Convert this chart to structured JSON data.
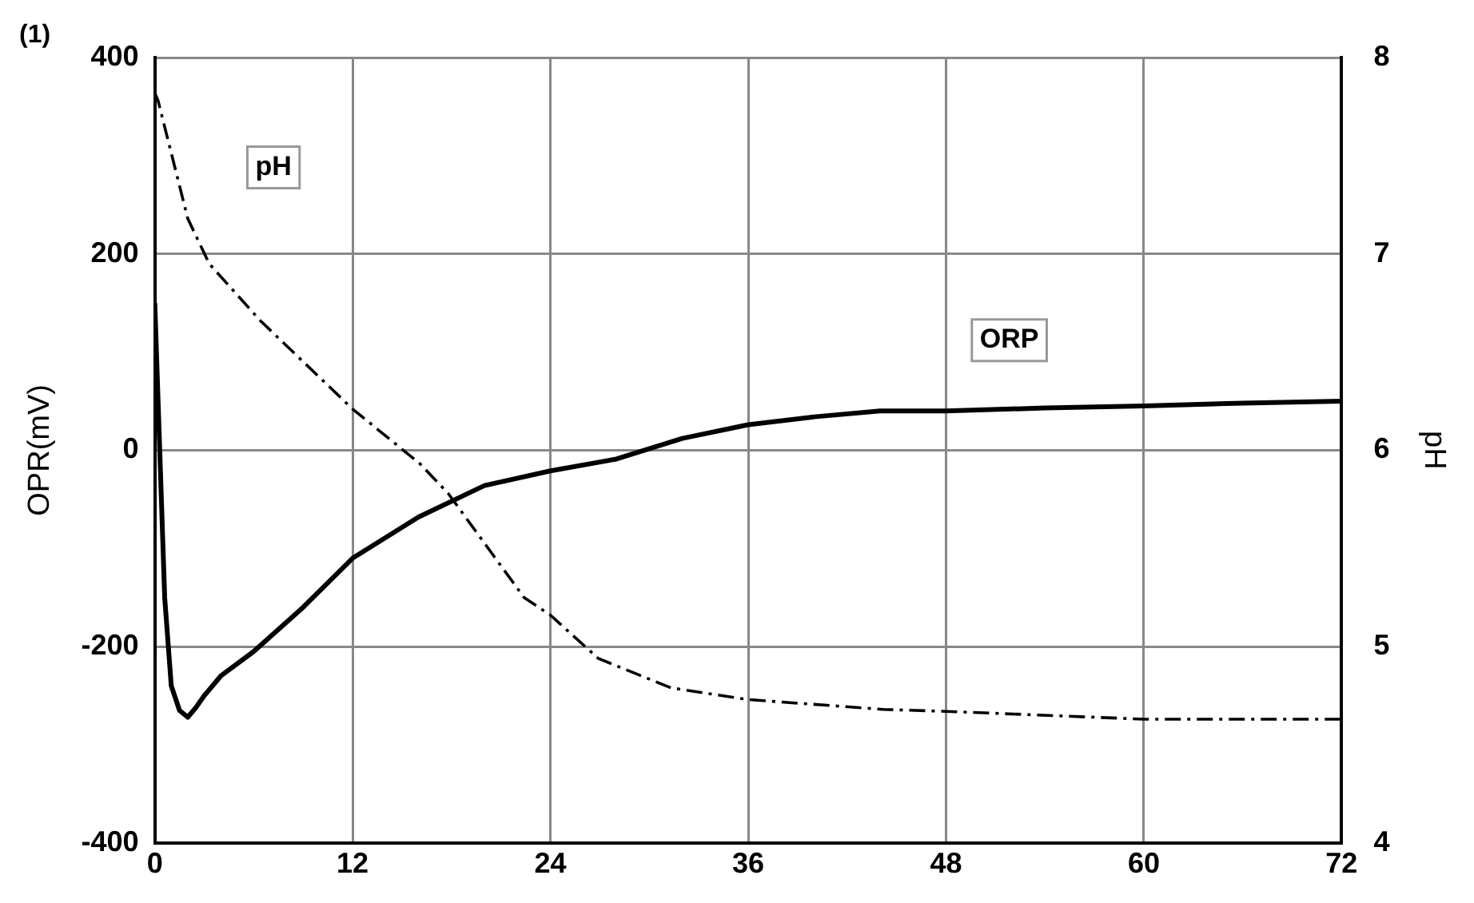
{
  "chart_data": {
    "type": "line",
    "ylabel": "OPR(mV)",
    "y2label": "pH",
    "annotations": [
      "(1)"
    ],
    "xlim": [
      0,
      72
    ],
    "xticks": [
      0,
      12,
      24,
      36,
      48,
      60,
      72
    ],
    "ylim": [
      -400,
      400
    ],
    "yticks": [
      -400,
      -200,
      0,
      200,
      400
    ],
    "y2lim": [
      4,
      8
    ],
    "y2ticks": [
      4,
      5,
      6,
      7,
      8
    ],
    "grid": true,
    "legend": false,
    "marker": "none",
    "series": [
      {
        "name": "ORP",
        "color": "#000000",
        "line_style": "solid",
        "x": [
          0,
          0.3,
          0.6,
          1,
          1.5,
          2,
          2.5,
          3,
          4,
          6,
          9,
          12,
          16,
          20,
          24,
          28,
          32,
          36,
          40,
          44,
          48,
          54,
          60,
          66,
          72
        ],
        "values": [
          150,
          0,
          -150,
          -240,
          -265,
          -272,
          -262,
          -250,
          -230,
          -205,
          -160,
          -110,
          -68,
          -36,
          -21,
          -9,
          12,
          26,
          34,
          40,
          40,
          43,
          45,
          48,
          50
        ]
      },
      {
        "name": "pH",
        "color": "#000000",
        "line_style": "dashed",
        "axis": "y2",
        "x": [
          0,
          0.2,
          2,
          3.3,
          6.4,
          12,
          16.1,
          17.8,
          22.4,
          24,
          26.9,
          31.3,
          36,
          44.2,
          48,
          60,
          72
        ],
        "values": [
          7.82,
          7.78,
          7.18,
          6.95,
          6.66,
          6.21,
          5.93,
          5.78,
          5.25,
          5.16,
          4.94,
          4.79,
          4.73,
          4.68,
          4.67,
          4.63,
          4.63
        ]
      }
    ]
  }
}
